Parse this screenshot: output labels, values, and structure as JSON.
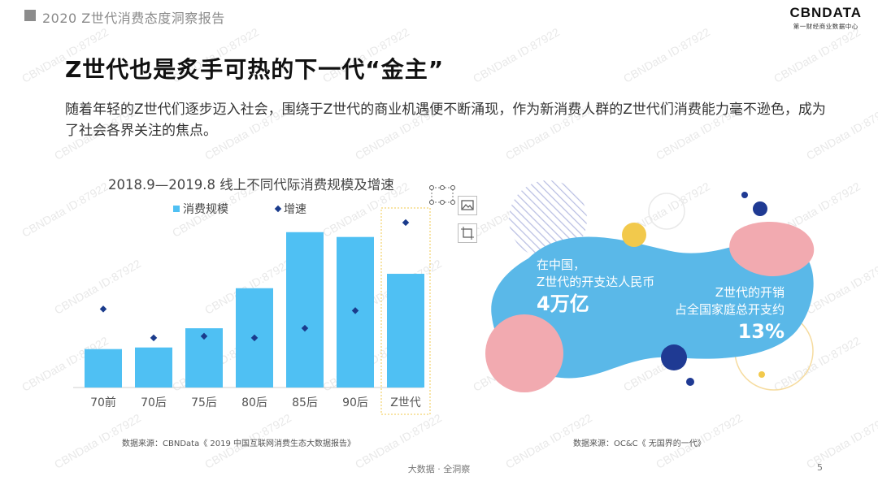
{
  "header": {
    "report_title": "2020 Z世代消费态度洞察报告"
  },
  "logo": {
    "main": "CBNDATA",
    "sub": "第一财经商业数据中心"
  },
  "main_title": "Z世代也是炙手可热的下一代“金主”",
  "intro_text": "随着年轻的Z世代们逐步迈入社会，围绕于Z世代的商业机遇便不断涌现，作为新消费人群的Z世代们消费能力毫不逊色，成为了社会各界关注的焦点。",
  "chart_data": {
    "type": "bar",
    "title": "2018.9—2019.8 线上不同代际消费规模及增速",
    "categories": [
      "70前",
      "70后",
      "75后",
      "80后",
      "85后",
      "90后",
      "Z世代"
    ],
    "series": [
      {
        "name": "消费规模",
        "values": [
          24,
          25,
          37,
          62,
          97,
          94,
          71
        ]
      },
      {
        "name": "增速",
        "values": [
          49,
          31,
          32,
          31,
          37,
          48,
          103
        ]
      }
    ],
    "ylim": [
      0,
      105
    ],
    "highlight_category": "Z世代",
    "colors": {
      "bar": "#4fc0f3",
      "dot": "#1a3b8c",
      "highlight_border": "#f2c94c"
    },
    "legend_position": "top"
  },
  "legend": {
    "scale_label": "消费规模",
    "growth_label": "增速"
  },
  "sources": {
    "left": "数据来源：CBNData《 2019 中国互联网消费生态大数据报告》",
    "right": "数据来源：OC&C《 无国界的一代》"
  },
  "infographic": {
    "stat1_line1": "在中国，",
    "stat1_line2": "Z世代的开支达人民币",
    "stat1_value": "4万亿",
    "stat2_line1": "Z世代的开销",
    "stat2_line2": "占全国家庭总开支约",
    "stat2_value": "13%",
    "colors": {
      "blob": "#5ab8e8",
      "pink": "#f2aab0",
      "navy": "#1f3a93",
      "yellow": "#f2c94c"
    }
  },
  "footer": {
    "text": "大数据 · 全洞察",
    "page": "5"
  },
  "watermark": "CBNData ID:87922",
  "toolbar_icons": [
    "image-icon",
    "crop-icon"
  ]
}
